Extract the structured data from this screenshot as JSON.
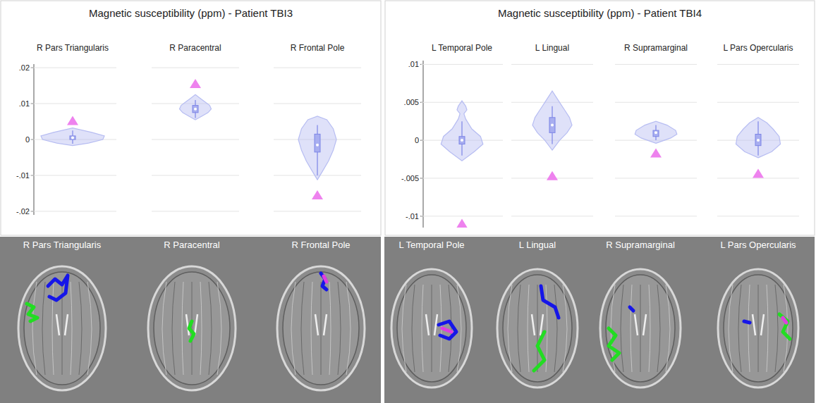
{
  "chart_data": [
    {
      "type": "violin",
      "title": "Magnetic susceptibility (ppm) - Patient TBI3",
      "grid": true,
      "color": "#b7bdf2",
      "ylim": [
        -0.021,
        0.021
      ],
      "yticks": [
        {
          "value": 0.02,
          "label": ".02"
        },
        {
          "value": 0.01,
          "label": ".01"
        },
        0,
        {
          "value": -0.01,
          "label": "-.01"
        },
        {
          "value": -0.02,
          "label": "-.02"
        }
      ],
      "categories": [
        "R Pars Triangularis",
        "R Paracentral",
        "R Frontal Pole"
      ],
      "violins": [
        {
          "whisker_low": -0.0012,
          "q1": 0.0,
          "median": 0.0005,
          "q3": 0.001,
          "whisker_high": 0.0025,
          "patient": 0.0052,
          "outline_y": [
            -0.0017,
            -0.001,
            0,
            0.001,
            0.002,
            0.0032
          ],
          "outline_w": [
            0,
            0.5,
            0.95,
            1,
            0.6,
            0
          ]
        },
        {
          "whisker_low": 0.006,
          "q1": 0.0075,
          "median": 0.0085,
          "q3": 0.0095,
          "whisker_high": 0.011,
          "patient": 0.0155,
          "outline_y": [
            0.0055,
            0.0065,
            0.0075,
            0.0085,
            0.0095,
            0.0105,
            0.0115,
            0.0125
          ],
          "outline_w": [
            0,
            0.2,
            0.4,
            0.5,
            0.45,
            0.3,
            0.15,
            0
          ]
        },
        {
          "whisker_low": -0.01,
          "q1": -0.0035,
          "median": -0.0015,
          "q3": 0.0015,
          "whisker_high": 0.004,
          "patient": -0.0155,
          "outline_y": [
            -0.0112,
            -0.009,
            -0.006,
            -0.003,
            0,
            0.003,
            0.0055,
            0.0065
          ],
          "outline_w": [
            0,
            0.15,
            0.35,
            0.5,
            0.6,
            0.5,
            0.3,
            0
          ]
        }
      ]
    },
    {
      "type": "violin",
      "title": "Magnetic susceptibility (ppm) - Patient TBI4",
      "grid": true,
      "color": "#b7bdf2",
      "ylim": [
        -0.0115,
        0.0105
      ],
      "yticks": [
        {
          "value": 0.01,
          "label": ".01"
        },
        {
          "value": 0.005,
          "label": ".005"
        },
        0,
        {
          "value": -0.005,
          "label": "-.005"
        },
        {
          "value": -0.01,
          "label": "-.01"
        }
      ],
      "categories": [
        "L Temporal Pole",
        "L Lingual",
        "R Supramarginal",
        "L Pars Opercularis"
      ],
      "violins": [
        {
          "whisker_low": -0.002,
          "q1": -0.0005,
          "median": 0.0,
          "q3": 0.0005,
          "whisker_high": 0.0025,
          "patient": -0.011,
          "outline_y": [
            -0.0027,
            -0.0015,
            -0.0005,
            0.0005,
            0.0015,
            0.0028,
            0.0035,
            0.004,
            0.0045,
            0.0052
          ],
          "outline_w": [
            0,
            0.5,
            0.85,
            0.75,
            0.4,
            0.15,
            0.08,
            0.2,
            0.15,
            0
          ]
        },
        {
          "whisker_low": -0.0005,
          "q1": 0.001,
          "median": 0.002,
          "q3": 0.003,
          "whisker_high": 0.0045,
          "patient": -0.0047,
          "outline_y": [
            -0.0013,
            0,
            0.001,
            0.002,
            0.003,
            0.004,
            0.005,
            0.0065
          ],
          "outline_w": [
            0,
            0.3,
            0.6,
            0.8,
            0.7,
            0.5,
            0.3,
            0
          ]
        },
        {
          "whisker_low": 0.0,
          "q1": 0.0005,
          "median": 0.001,
          "q3": 0.0013,
          "whisker_high": 0.002,
          "patient": -0.0017,
          "outline_y": [
            -0.0004,
            0.0003,
            0.0008,
            0.0013,
            0.002,
            0.0025
          ],
          "outline_w": [
            0,
            0.6,
            0.85,
            0.8,
            0.45,
            0
          ]
        },
        {
          "whisker_low": -0.002,
          "q1": -0.0007,
          "median": 0.0,
          "q3": 0.0008,
          "whisker_high": 0.0025,
          "patient": -0.0044,
          "outline_y": [
            -0.0023,
            -0.0015,
            -0.0005,
            0.0005,
            0.0015,
            0.0023,
            0.003
          ],
          "outline_w": [
            0,
            0.55,
            0.9,
            0.85,
            0.6,
            0.35,
            0
          ]
        }
      ]
    }
  ]
}
